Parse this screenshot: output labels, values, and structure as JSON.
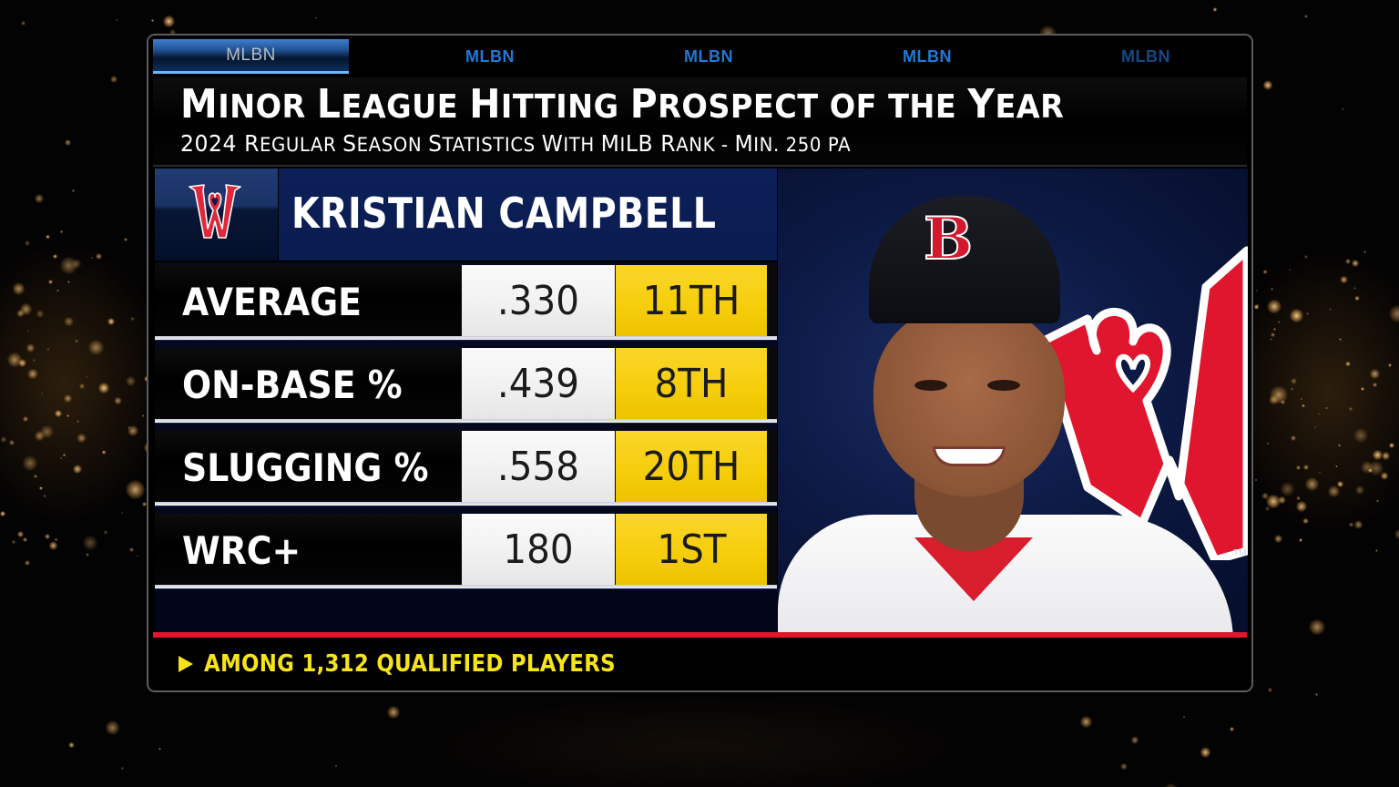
{
  "network": {
    "tabs": [
      {
        "label": "MLBN",
        "state": "active"
      },
      {
        "label": "MLBN",
        "state": "inactive"
      },
      {
        "label": "MLBN",
        "state": "inactive"
      },
      {
        "label": "MLBN",
        "state": "inactive"
      },
      {
        "label": "MLBN",
        "state": "dim"
      }
    ]
  },
  "header": {
    "title": "Minor League Hitting Prospect of the Year",
    "title_display": [
      "M",
      "INOR ",
      "L",
      "EAGUE ",
      "H",
      "ITTING ",
      "P",
      "ROSPECT OF THE ",
      "Y",
      "EAR"
    ],
    "subtitle": "2024 Regular Season Statistics with MiLB Rank - Min. 250 PA",
    "subtitle_display": [
      "2024 R",
      "EGULAR ",
      "S",
      "EASON ",
      "S",
      "TATISTICS ",
      "W",
      "ITH ",
      "M",
      "I",
      "LB R",
      "ANK - ",
      "M",
      "IN. 250 PA"
    ]
  },
  "player": {
    "name": "KRISTIAN CAMPBELL",
    "team_logo": "worcester-red-sox-w-logo",
    "cap_logo": "boston-red-sox-b-logo"
  },
  "stats": [
    {
      "label": "AVERAGE",
      "value": ".330",
      "rank": "11TH"
    },
    {
      "label": "ON-BASE %",
      "value": ".439",
      "rank": "8TH"
    },
    {
      "label": "SLUGGING %",
      "value": ".558",
      "rank": "20TH"
    },
    {
      "label": "WRC+",
      "value": "180",
      "rank": "1ST"
    }
  ],
  "footer": {
    "note": "AMONG 1,312 QUALIFIED PLAYERS",
    "icon": "play-triangle-icon"
  },
  "colors": {
    "rank_yellow": "#f5cd0b",
    "value_white": "#f2f2f2",
    "accent_red": "#e2162d",
    "navy": "#0a1c50",
    "mlbn_blue": "#1f7ad8",
    "footer_yellow": "#f6e419"
  }
}
